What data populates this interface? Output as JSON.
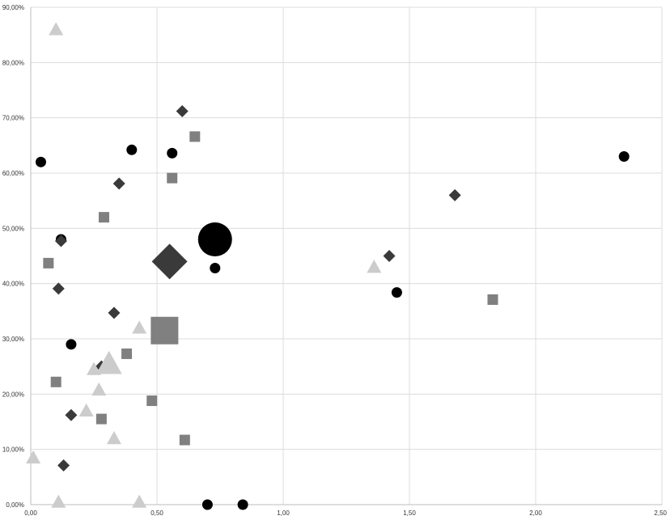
{
  "chart_data": {
    "type": "scatter",
    "title": "",
    "xlabel": "",
    "ylabel": "",
    "xlim": [
      0,
      2.5
    ],
    "ylim": [
      0,
      0.9
    ],
    "x_ticks": [
      {
        "value": 0,
        "label": "0,00"
      },
      {
        "value": 0.5,
        "label": "0,50"
      },
      {
        "value": 1.0,
        "label": "1,00"
      },
      {
        "value": 1.5,
        "label": "1,50"
      },
      {
        "value": 2.0,
        "label": "2,00"
      },
      {
        "value": 2.5,
        "label": "2,50"
      }
    ],
    "y_ticks": [
      {
        "value": 0,
        "label": "0,00%"
      },
      {
        "value": 0.1,
        "label": "10,00%"
      },
      {
        "value": 0.2,
        "label": "20,00%"
      },
      {
        "value": 0.3,
        "label": "30,00%"
      },
      {
        "value": 0.4,
        "label": "40,00%"
      },
      {
        "value": 0.5,
        "label": "50,00%"
      },
      {
        "value": 0.6,
        "label": "60,00%"
      },
      {
        "value": 0.7,
        "label": "70,00%"
      },
      {
        "value": 0.8,
        "label": "80,00%"
      },
      {
        "value": 0.9,
        "label": "90,00%"
      }
    ],
    "grid": true,
    "legend": "none",
    "series": [
      {
        "marker": "circle",
        "color": "#000000",
        "points": [
          {
            "x": 0.04,
            "y": 0.62
          },
          {
            "x": 0.12,
            "y": 0.48
          },
          {
            "x": 0.16,
            "y": 0.29
          },
          {
            "x": 0.4,
            "y": 0.642
          },
          {
            "x": 0.56,
            "y": 0.636
          },
          {
            "x": 0.73,
            "y": 0.48,
            "size": "large"
          },
          {
            "x": 0.73,
            "y": 0.428
          },
          {
            "x": 0.7,
            "y": 0.0
          },
          {
            "x": 0.84,
            "y": 0.0
          },
          {
            "x": 1.45,
            "y": 0.384
          },
          {
            "x": 2.35,
            "y": 0.63
          }
        ]
      },
      {
        "marker": "diamond",
        "color": "#3a3a3a",
        "points": [
          {
            "x": 0.6,
            "y": 0.712
          },
          {
            "x": 0.35,
            "y": 0.581
          },
          {
            "x": 0.12,
            "y": 0.477
          },
          {
            "x": 0.11,
            "y": 0.391
          },
          {
            "x": 0.33,
            "y": 0.347
          },
          {
            "x": 0.28,
            "y": 0.25
          },
          {
            "x": 0.16,
            "y": 0.162
          },
          {
            "x": 0.13,
            "y": 0.071
          },
          {
            "x": 0.55,
            "y": 0.44,
            "size": "large"
          },
          {
            "x": 1.42,
            "y": 0.45
          },
          {
            "x": 1.68,
            "y": 0.56
          }
        ]
      },
      {
        "marker": "square",
        "color": "#808080",
        "points": [
          {
            "x": 0.65,
            "y": 0.666
          },
          {
            "x": 0.56,
            "y": 0.591
          },
          {
            "x": 0.29,
            "y": 0.52
          },
          {
            "x": 0.07,
            "y": 0.437
          },
          {
            "x": 0.53,
            "y": 0.315,
            "size": "large"
          },
          {
            "x": 0.38,
            "y": 0.273
          },
          {
            "x": 0.1,
            "y": 0.222
          },
          {
            "x": 0.48,
            "y": 0.188
          },
          {
            "x": 0.28,
            "y": 0.155
          },
          {
            "x": 0.61,
            "y": 0.117
          },
          {
            "x": 1.83,
            "y": 0.371
          }
        ]
      },
      {
        "marker": "triangle",
        "color": "#cccccc",
        "points": [
          {
            "x": 0.1,
            "y": 0.86
          },
          {
            "x": 0.43,
            "y": 0.32
          },
          {
            "x": 0.31,
            "y": 0.255,
            "size": "large"
          },
          {
            "x": 0.25,
            "y": 0.245
          },
          {
            "x": 0.27,
            "y": 0.208
          },
          {
            "x": 0.22,
            "y": 0.17
          },
          {
            "x": 0.33,
            "y": 0.12
          },
          {
            "x": 0.01,
            "y": 0.085
          },
          {
            "x": 0.11,
            "y": 0.005
          },
          {
            "x": 0.43,
            "y": 0.005
          },
          {
            "x": 1.36,
            "y": 0.43
          }
        ]
      }
    ]
  }
}
